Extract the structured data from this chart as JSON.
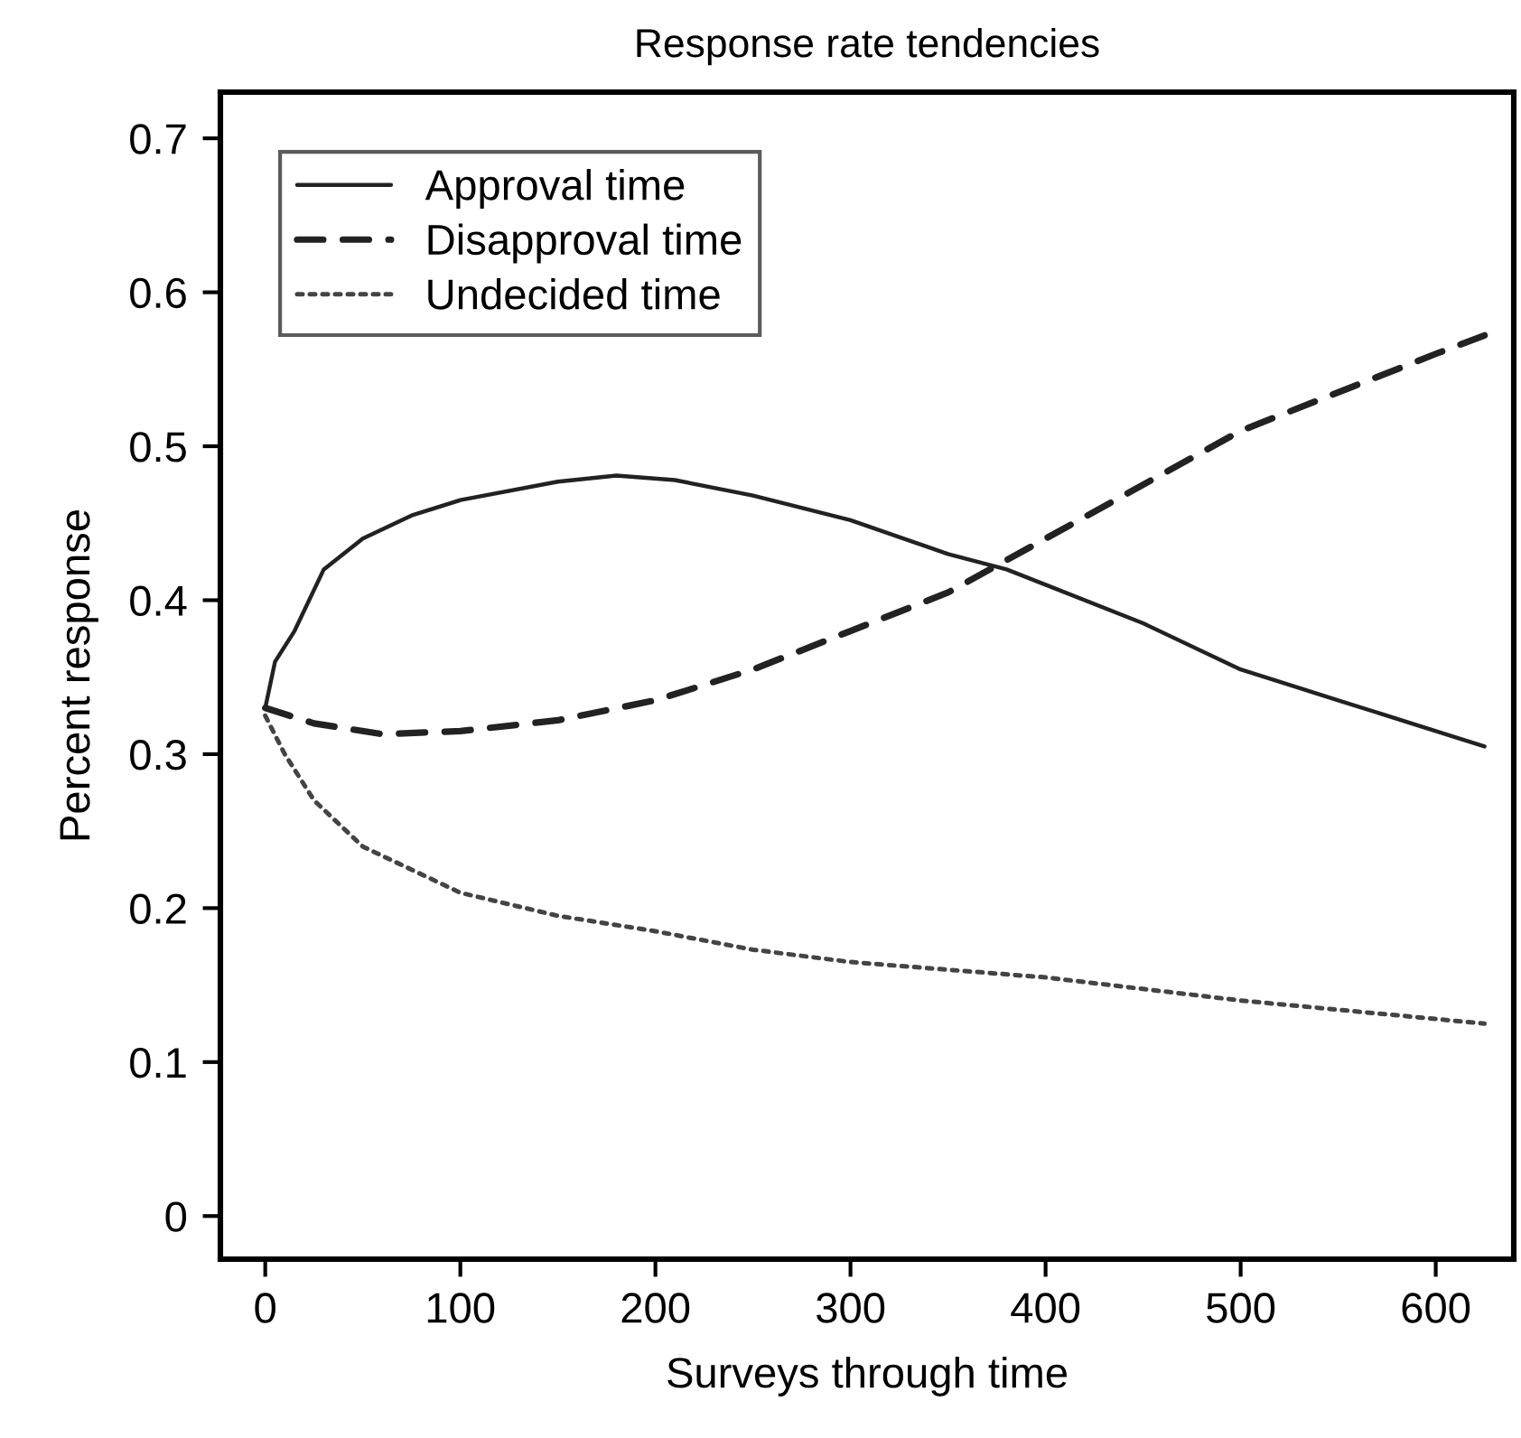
{
  "chart_data": {
    "type": "line",
    "title": "Response rate tendencies",
    "xlabel": "Surveys through time",
    "ylabel": "Percent response",
    "xlim": [
      -23,
      640
    ],
    "ylim": [
      -0.028,
      0.73
    ],
    "xticks": [
      0,
      100,
      200,
      300,
      400,
      500,
      600
    ],
    "yticks": [
      0,
      0.1,
      0.2,
      0.3,
      0.4,
      0.5,
      0.6,
      0.7
    ],
    "grid": false,
    "legend": "top left",
    "series": [
      {
        "name": "Approval time",
        "color": "#222222",
        "line_style": "solid",
        "x": [
          0,
          5,
          15,
          30,
          50,
          75,
          100,
          150,
          180,
          210,
          250,
          300,
          350,
          380,
          400,
          450,
          500,
          550,
          600,
          625
        ],
        "values": [
          0.33,
          0.36,
          0.38,
          0.42,
          0.44,
          0.455,
          0.465,
          0.477,
          0.481,
          0.478,
          0.468,
          0.452,
          0.43,
          0.42,
          0.41,
          0.385,
          0.355,
          0.335,
          0.315,
          0.305
        ]
      },
      {
        "name": "Disapproval time",
        "color": "#222222",
        "line_style": "dashed",
        "x": [
          0,
          25,
          60,
          100,
          150,
          200,
          250,
          300,
          350,
          400,
          450,
          500,
          550,
          600,
          625
        ],
        "values": [
          0.33,
          0.32,
          0.313,
          0.315,
          0.322,
          0.335,
          0.355,
          0.38,
          0.405,
          0.44,
          0.475,
          0.51,
          0.535,
          0.56,
          0.572
        ]
      },
      {
        "name": "Undecided time",
        "color": "#444444",
        "line_style": "dotted",
        "x": [
          0,
          10,
          25,
          50,
          100,
          150,
          200,
          250,
          300,
          400,
          500,
          600,
          625
        ],
        "values": [
          0.325,
          0.3,
          0.27,
          0.24,
          0.21,
          0.195,
          0.185,
          0.173,
          0.165,
          0.155,
          0.14,
          0.128,
          0.125
        ]
      }
    ]
  }
}
